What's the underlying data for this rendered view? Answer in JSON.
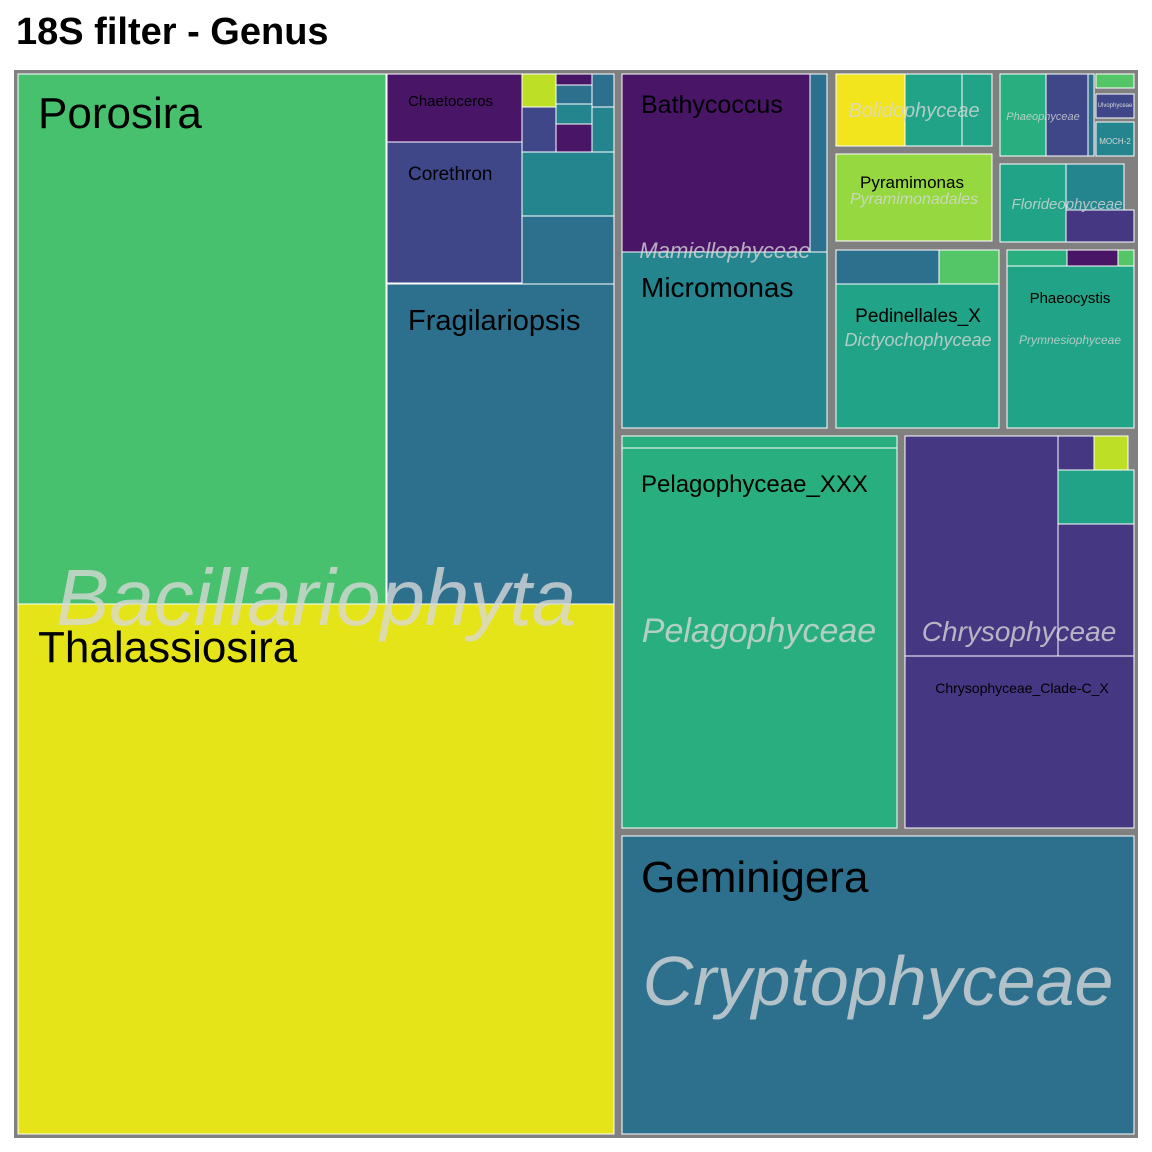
{
  "chart_data": {
    "type": "treemap",
    "title": "18S filter - Genus",
    "colors": {
      "background": "#808080",
      "tile_border": "#ffffff",
      "label_dark": "#000000",
      "label_light": "#d8d8d8"
    },
    "groups": [
      {
        "name": "Bacillariophyta",
        "tiles": [
          {
            "label": "Porosira",
            "color": "#48c16e"
          },
          {
            "label": "Thalassiosira",
            "color": "#e4e419"
          },
          {
            "label": "Chaetoceros",
            "color": "#481567"
          },
          {
            "label": "Corethron",
            "color": "#3f4788"
          },
          {
            "label": "Fragilariopsis",
            "color": "#2d708e"
          },
          {
            "label": "",
            "color": "#bddf26"
          },
          {
            "label": "",
            "color": "#481567"
          },
          {
            "label": "",
            "color": "#2d708e"
          },
          {
            "label": "",
            "color": "#2d708e"
          },
          {
            "label": "",
            "color": "#3f4788"
          },
          {
            "label": "",
            "color": "#25858e"
          },
          {
            "label": "",
            "color": "#481567"
          },
          {
            "label": "",
            "color": "#25858e"
          },
          {
            "label": "",
            "color": "#25858e"
          },
          {
            "label": "",
            "color": "#2d708e"
          },
          {
            "label": "",
            "color": "#481567"
          },
          {
            "label": "",
            "color": "#6ece58"
          }
        ]
      },
      {
        "name": "Mamiellophyceae",
        "tiles": [
          {
            "label": "Bathycoccus",
            "color": "#481567"
          },
          {
            "label": "",
            "color": "#2d708e"
          },
          {
            "label": "Micromonas",
            "color": "#25858e"
          }
        ]
      },
      {
        "name": "Bolidophyceae",
        "tiles": [
          {
            "label": "",
            "color": "#f2e51d"
          },
          {
            "label": "",
            "color": "#20a386"
          },
          {
            "label": "",
            "color": "#20a386"
          }
        ]
      },
      {
        "name": "Pyramimonadales",
        "tiles": [
          {
            "label": "Pyramimonas",
            "color": "#95d840"
          }
        ]
      },
      {
        "name": "Phaeophyceae",
        "tiles": [
          {
            "label": "",
            "color": "#29af7f"
          },
          {
            "label": "",
            "color": "#3f4788"
          },
          {
            "label": "",
            "color": "#2d708e"
          }
        ]
      },
      {
        "name": "",
        "tiles": [
          {
            "label": "",
            "color": "#55c667"
          },
          {
            "label": "Ulvophyceae",
            "color": "#3f4788"
          },
          {
            "label": "MOCH-2",
            "color": "#25858e"
          }
        ]
      },
      {
        "name": "Florideophyceae",
        "tiles": [
          {
            "label": "",
            "color": "#20a386"
          },
          {
            "label": "",
            "color": "#25858e"
          },
          {
            "label": "",
            "color": "#453781"
          }
        ]
      },
      {
        "name": "Dictyochophyceae",
        "tiles": [
          {
            "label": "",
            "color": "#2d708e"
          },
          {
            "label": "",
            "color": "#55c667"
          },
          {
            "label": "Pedinellales_X",
            "color": "#20a386"
          }
        ]
      },
      {
        "name": "Prymnesiophyceae",
        "tiles": [
          {
            "label": "",
            "color": "#29af7f"
          },
          {
            "label": "",
            "color": "#481567"
          },
          {
            "label": "",
            "color": "#55c667"
          },
          {
            "label": "Phaeocystis",
            "color": "#20a386"
          }
        ]
      },
      {
        "name": "Pelagophyceae",
        "tiles": [
          {
            "label": "",
            "color": "#29af7f"
          },
          {
            "label": "Pelagophyceae_XXX",
            "color": "#29af7f"
          }
        ]
      },
      {
        "name": "Chrysophyceae",
        "tiles": [
          {
            "label": "",
            "color": "#453781"
          },
          {
            "label": "",
            "color": "#453781"
          },
          {
            "label": "",
            "color": "#bddf26"
          },
          {
            "label": "",
            "color": "#20a386"
          },
          {
            "label": "",
            "color": "#453781"
          },
          {
            "label": "Chrysophyceae_Clade-C_X",
            "color": "#453781"
          }
        ]
      },
      {
        "name": "Cryptophyceae",
        "tiles": [
          {
            "label": "Geminigera",
            "color": "#2d708e"
          }
        ]
      }
    ]
  }
}
